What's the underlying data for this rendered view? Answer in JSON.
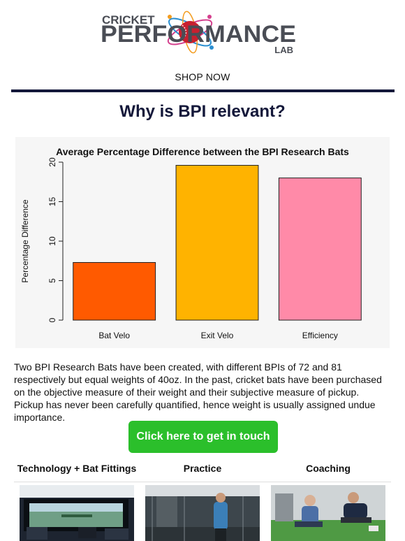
{
  "logo": {
    "word1": "CRICKET",
    "word2": "PERFORMANCE",
    "word3": "LAB",
    "colors": {
      "text": "#4a4d55",
      "ball": "#c8202f",
      "orbit_a": "#d43f8d",
      "orbit_b": "#2a8fd1",
      "orbit_c": "#f39c1f"
    }
  },
  "nav": {
    "shop_label": "SHOP NOW"
  },
  "headline": "Why is BPI relevant?",
  "chart_data": {
    "type": "bar",
    "title": "Average Percentage Difference between the BPI Research Bats",
    "xlabel": "",
    "ylabel": "Percentage Difference",
    "categories": [
      "Bat Velo",
      "Exit Velo",
      "Efficiency"
    ],
    "values": [
      7.3,
      19.6,
      18.0
    ],
    "colors": [
      "#ff5a00",
      "#ffb300",
      "#ff8aa8"
    ],
    "ylim": [
      0,
      20
    ],
    "yticks": [
      "0",
      "5",
      "10",
      "15",
      "20"
    ],
    "grid": false
  },
  "body_text": "Two BPI Research Bats have been created, with different BPIs of 72 and 81 respectively but equal weights of 40oz. In the past, cricket bats have been purchased on the objective measure of their weight and their subjective measure of pickup. Pickup has never been carefully quantified, hence weight is usually assigned undue importance.",
  "cta": {
    "label": "Click here to get in touch",
    "color": "#2bbf2b"
  },
  "columns": [
    {
      "title": "Technology + Bat Fittings",
      "icon": "simulator-photo"
    },
    {
      "title": "Practice",
      "icon": "nets-photo"
    },
    {
      "title": "Coaching",
      "icon": "coaching-photo"
    }
  ]
}
